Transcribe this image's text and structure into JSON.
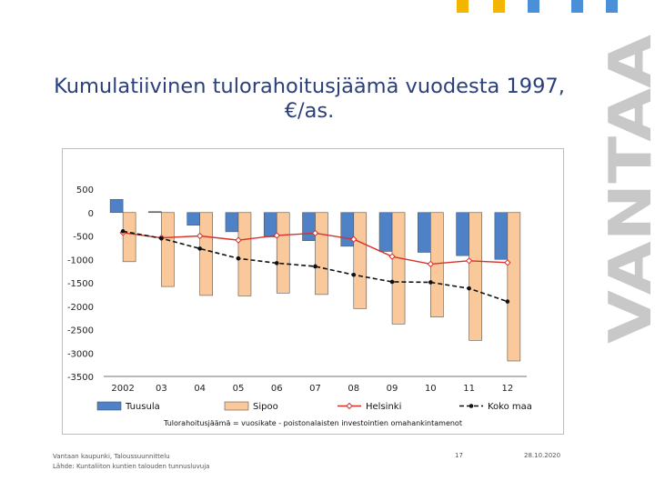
{
  "slide": {
    "title": "Kumulatiivinen tulorahoitusjäämä vuodesta 1997,\n€/as.",
    "logo_text": "VANTAA",
    "decor_colors": [
      "#f2b600",
      "#f2b600",
      "#4a90d9",
      "#4a90d9",
      "#4a90d9"
    ],
    "footer_org": "Vantaan kaupunki, Taloussuunnittelu",
    "footer_source": "Lähde: Kuntaliiton kuntien talouden tunnusluvuja",
    "page_number": "17",
    "date": "28.10.2020"
  },
  "chart_data": {
    "type": "bar",
    "categories": [
      "2002",
      "03",
      "04",
      "05",
      "06",
      "07",
      "08",
      "09",
      "10",
      "11",
      "12"
    ],
    "ylim": [
      -3500,
      500
    ],
    "yticks": [
      500,
      0,
      -500,
      -1000,
      -1500,
      -2000,
      -2500,
      -3000,
      -3500
    ],
    "grid": false,
    "legend_position": "bottom",
    "note": "Tulorahoitusjäämä = vuosikate - poistonalaisten investointien omahankintamenot",
    "series": [
      {
        "name": "Tuusula",
        "type": "bar",
        "color": "#4f81c7",
        "values": [
          280,
          20,
          -270,
          -410,
          -520,
          -600,
          -720,
          -830,
          -850,
          -920,
          -1000
        ]
      },
      {
        "name": "Sipoo",
        "type": "bar",
        "color": "#f9c89b",
        "values": [
          -1050,
          -1580,
          -1770,
          -1780,
          -1720,
          -1750,
          -2050,
          -2380,
          -2230,
          -2730,
          -3170
        ]
      },
      {
        "name": "Helsinki",
        "type": "line",
        "color": "#d9312b",
        "marker": "diamond-open",
        "values": [
          -430,
          -540,
          -500,
          -590,
          -490,
          -440,
          -570,
          -940,
          -1100,
          -1030,
          -1070
        ]
      },
      {
        "name": "Koko maa",
        "type": "line",
        "color": "#111111",
        "marker": "dot",
        "dashed": true,
        "values": [
          -400,
          -550,
          -770,
          -980,
          -1080,
          -1150,
          -1330,
          -1480,
          -1490,
          -1620,
          -1900
        ]
      }
    ]
  }
}
